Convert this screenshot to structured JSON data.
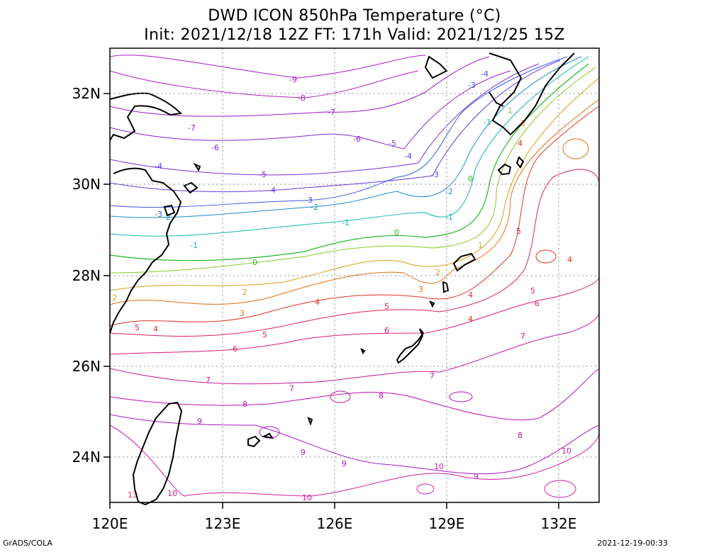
{
  "title_line1": "DWD ICON 850hPa Temperature (°C)",
  "title_line2": "Init: 2021/12/18 12Z  FT: 171h  Valid: 2021/12/25 15Z",
  "footer_left": "GrADS/COLA",
  "footer_right": "2021-12-19-00:33",
  "map": {
    "lon_range": [
      120,
      133
    ],
    "lat_range": [
      23,
      33
    ],
    "lon_ticks": [
      "120E",
      "123E",
      "126E",
      "129E",
      "132E"
    ],
    "lat_ticks": [
      "32N",
      "30N",
      "28N",
      "26N",
      "24N"
    ],
    "grid": "dotted",
    "coastline_color": "#000000"
  },
  "contours": [
    {
      "level": "-4",
      "color": "#7b2fd8"
    },
    {
      "level": "-3",
      "color": "#3a55e0"
    },
    {
      "level": "-2",
      "color": "#1a8fd0"
    },
    {
      "level": "-1",
      "color": "#10b7b0"
    },
    {
      "level": "0",
      "color": "#22b822"
    },
    {
      "level": "1",
      "color": "#8cc820"
    },
    {
      "level": "2",
      "color": "#d8a010"
    },
    {
      "level": "3",
      "color": "#e07010"
    },
    {
      "level": "4",
      "color": "#e03020"
    },
    {
      "level": "5",
      "color": "#e02050"
    },
    {
      "level": "6",
      "color": "#d81878"
    },
    {
      "level": "7",
      "color": "#c81898"
    },
    {
      "level": "8",
      "color": "#c010b0"
    },
    {
      "level": "9",
      "color": "#a818c8"
    },
    {
      "level": "10",
      "color": "#d020a0"
    }
  ]
}
